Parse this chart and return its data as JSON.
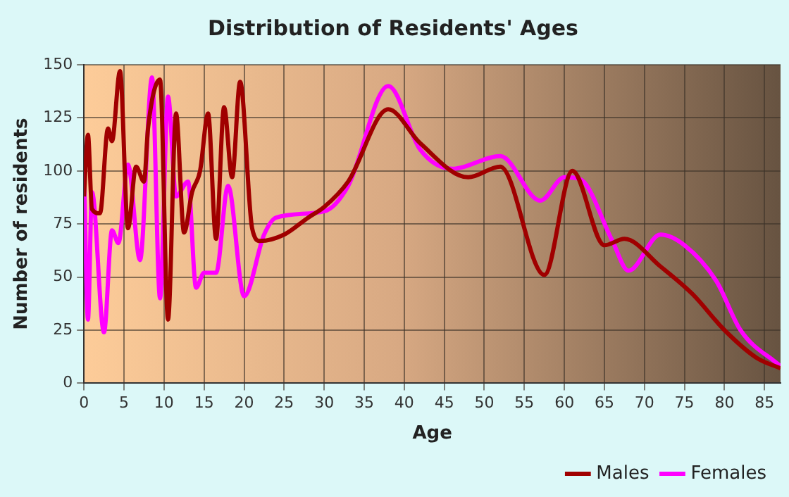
{
  "chart_data": {
    "type": "line",
    "title": "Distribution of Residents' Ages",
    "xlabel": "Age",
    "ylabel": "Number of residents",
    "xlim": [
      0,
      87
    ],
    "xticks": [
      0,
      5,
      10,
      15,
      20,
      25,
      30,
      35,
      40,
      45,
      50,
      55,
      60,
      65,
      70,
      75,
      80,
      85
    ],
    "ylim": [
      0,
      150
    ],
    "yticks": [
      0,
      25,
      50,
      75,
      100,
      125,
      150
    ],
    "grid": true,
    "legend": "bottom right",
    "marker": "none",
    "series": [
      {
        "name": "Males",
        "color": "#a00000",
        "x": [
          0,
          0.5,
          1,
          2,
          3,
          3.5,
          4.5,
          5.5,
          6.5,
          7.5,
          8,
          9.5,
          10.5,
          11.5,
          12.5,
          13.5,
          14.5,
          15.5,
          16.5,
          17.5,
          18.5,
          19.5,
          21,
          22,
          25,
          28,
          30,
          33,
          38,
          42,
          48,
          52,
          57.5,
          61,
          65,
          67.5,
          72,
          76,
          80,
          84,
          87
        ],
        "values": [
          88,
          117,
          82,
          80,
          120,
          114,
          147,
          73,
          102,
          95,
          120,
          143,
          30,
          127,
          71,
          90,
          100,
          127,
          68,
          130,
          97,
          142,
          73,
          67,
          70,
          78,
          83,
          95,
          129,
          113,
          97,
          102,
          51,
          100,
          65,
          68,
          55,
          42,
          25,
          12,
          7
        ]
      },
      {
        "name": "Females",
        "color": "#ff00ff",
        "x": [
          0,
          0.5,
          1,
          2.5,
          3.5,
          4.3,
          5.5,
          7,
          8.5,
          9.5,
          10.5,
          11.5,
          13,
          14,
          15,
          16.5,
          18,
          20,
          22.5,
          24,
          30,
          33,
          38,
          42,
          46,
          52,
          57,
          60,
          62,
          66,
          68,
          72,
          75,
          79,
          82,
          87
        ],
        "values": [
          100,
          30,
          90,
          24,
          72,
          66,
          103,
          58,
          144,
          40,
          135,
          88,
          95,
          45,
          52,
          52,
          93,
          41,
          70,
          78,
          81,
          93,
          140,
          110,
          101,
          107,
          86,
          97,
          96,
          67,
          53,
          70,
          65,
          48,
          25,
          8
        ]
      }
    ]
  }
}
